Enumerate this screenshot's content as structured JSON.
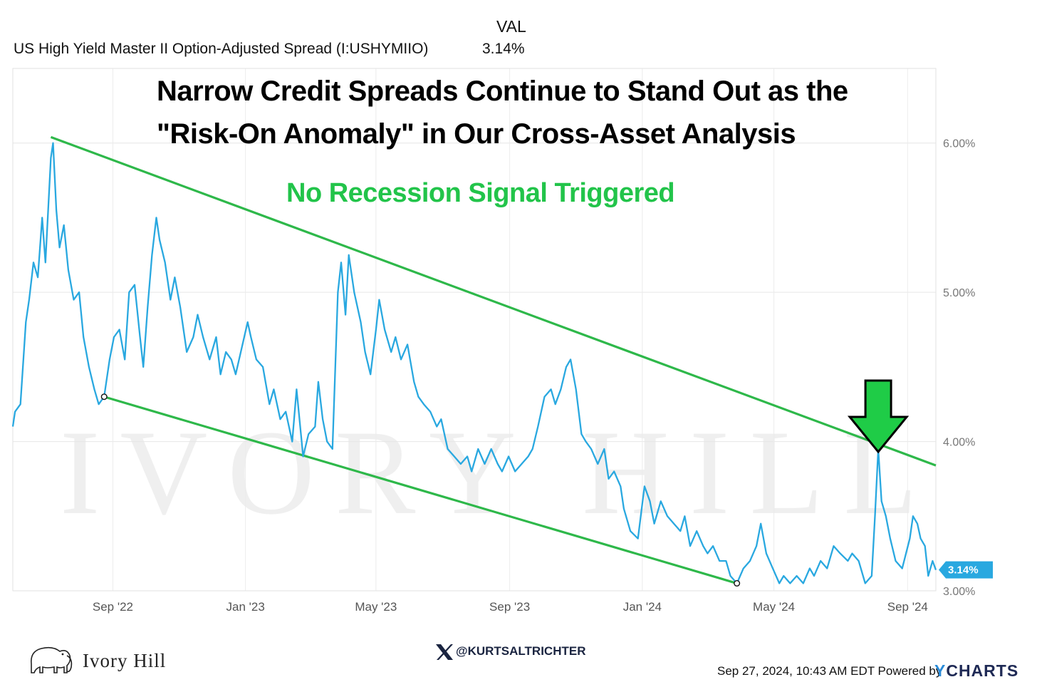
{
  "header": {
    "val_label": "VAL",
    "series_name": "US High Yield Master II Option-Adjusted Spread (I:USHYMIIO)",
    "series_value": "3.14%"
  },
  "annotations": {
    "title_line1": "Narrow Credit Spreads Continue to Stand Out as the",
    "title_line2": "\"Risk-On Anomaly\" in Our Cross-Asset Analysis",
    "subtitle": "No Recession Signal Triggered",
    "current_badge": "3.14%"
  },
  "watermark": {
    "text": "IVORY HILL"
  },
  "footer": {
    "brand": "Ivory Hill",
    "handle": "@KURTSALTRICHTER",
    "timestamp": "Sep 27, 2024, 10:43 AM EDT Powered by",
    "ycharts_y": "Y",
    "ycharts_rest": "CHARTS"
  },
  "colors": {
    "series": "#29a8e0",
    "trendlines": "#2eb84a",
    "subtitle": "#22c44a",
    "arrow_fill": "#1fcc47",
    "badge": "#29a8e0"
  },
  "icons": [
    "elephant-icon",
    "x-logo-icon",
    "down-arrow-icon"
  ],
  "chart_data": {
    "type": "line",
    "x_range": [
      "2022-06-01",
      "2024-09-27"
    ],
    "ylim": [
      3.0,
      6.5
    ],
    "yticks": [
      {
        "value": 6.0,
        "label": "6.00%"
      },
      {
        "value": 5.0,
        "label": "5.00%"
      },
      {
        "value": 4.0,
        "label": "4.00%"
      },
      {
        "value": 3.0,
        "label": "3.00%"
      }
    ],
    "xticks": [
      {
        "date": "2022-09-01",
        "label": "Sep '22"
      },
      {
        "date": "2023-01-01",
        "label": "Jan '23"
      },
      {
        "date": "2023-05-01",
        "label": "May '23"
      },
      {
        "date": "2023-09-01",
        "label": "Sep '23"
      },
      {
        "date": "2024-01-01",
        "label": "Jan '24"
      },
      {
        "date": "2024-05-01",
        "label": "May '24"
      },
      {
        "date": "2024-09-01",
        "label": "Sep '24"
      }
    ],
    "grid": true,
    "series": [
      {
        "name": "US High Yield Master II Option-Adjusted Spread (I:USHYMIIO)",
        "points": [
          [
            "2022-06-01",
            4.1
          ],
          [
            "2022-06-03",
            4.2
          ],
          [
            "2022-06-08",
            4.25
          ],
          [
            "2022-06-13",
            4.8
          ],
          [
            "2022-06-16",
            4.95
          ],
          [
            "2022-06-20",
            5.2
          ],
          [
            "2022-06-24",
            5.1
          ],
          [
            "2022-06-28",
            5.5
          ],
          [
            "2022-07-01",
            5.2
          ],
          [
            "2022-07-06",
            5.9
          ],
          [
            "2022-07-08",
            6.0
          ],
          [
            "2022-07-11",
            5.55
          ],
          [
            "2022-07-14",
            5.3
          ],
          [
            "2022-07-18",
            5.45
          ],
          [
            "2022-07-22",
            5.15
          ],
          [
            "2022-07-27",
            4.95
          ],
          [
            "2022-08-01",
            5.0
          ],
          [
            "2022-08-05",
            4.7
          ],
          [
            "2022-08-10",
            4.5
          ],
          [
            "2022-08-15",
            4.35
          ],
          [
            "2022-08-19",
            4.25
          ],
          [
            "2022-08-24",
            4.3
          ],
          [
            "2022-08-29",
            4.55
          ],
          [
            "2022-09-02",
            4.7
          ],
          [
            "2022-09-07",
            4.75
          ],
          [
            "2022-09-12",
            4.55
          ],
          [
            "2022-09-16",
            5.0
          ],
          [
            "2022-09-21",
            5.05
          ],
          [
            "2022-09-26",
            4.7
          ],
          [
            "2022-09-29",
            4.5
          ],
          [
            "2022-10-03",
            4.9
          ],
          [
            "2022-10-07",
            5.25
          ],
          [
            "2022-10-11",
            5.5
          ],
          [
            "2022-10-14",
            5.35
          ],
          [
            "2022-10-19",
            5.2
          ],
          [
            "2022-10-24",
            4.95
          ],
          [
            "2022-10-28",
            5.1
          ],
          [
            "2022-11-02",
            4.9
          ],
          [
            "2022-11-08",
            4.6
          ],
          [
            "2022-11-14",
            4.7
          ],
          [
            "2022-11-18",
            4.85
          ],
          [
            "2022-11-23",
            4.7
          ],
          [
            "2022-11-29",
            4.55
          ],
          [
            "2022-12-05",
            4.7
          ],
          [
            "2022-12-09",
            4.45
          ],
          [
            "2022-12-14",
            4.6
          ],
          [
            "2022-12-19",
            4.55
          ],
          [
            "2022-12-23",
            4.45
          ],
          [
            "2023-01-03",
            4.8
          ],
          [
            "2023-01-06",
            4.7
          ],
          [
            "2023-01-11",
            4.55
          ],
          [
            "2023-01-17",
            4.5
          ],
          [
            "2023-01-23",
            4.25
          ],
          [
            "2023-01-27",
            4.35
          ],
          [
            "2023-02-02",
            4.15
          ],
          [
            "2023-02-07",
            4.2
          ],
          [
            "2023-02-13",
            4.0
          ],
          [
            "2023-02-17",
            4.35
          ],
          [
            "2023-02-23",
            3.9
          ],
          [
            "2023-02-28",
            4.05
          ],
          [
            "2023-03-06",
            4.1
          ],
          [
            "2023-03-09",
            4.4
          ],
          [
            "2023-03-13",
            4.15
          ],
          [
            "2023-03-17",
            4.0
          ],
          [
            "2023-03-22",
            3.95
          ],
          [
            "2023-03-27",
            5.0
          ],
          [
            "2023-03-30",
            5.2
          ],
          [
            "2023-04-03",
            4.85
          ],
          [
            "2023-04-06",
            5.25
          ],
          [
            "2023-04-11",
            5.0
          ],
          [
            "2023-04-17",
            4.8
          ],
          [
            "2023-04-21",
            4.6
          ],
          [
            "2023-04-26",
            4.45
          ],
          [
            "2023-05-01",
            4.75
          ],
          [
            "2023-05-04",
            4.95
          ],
          [
            "2023-05-09",
            4.75
          ],
          [
            "2023-05-15",
            4.6
          ],
          [
            "2023-05-19",
            4.7
          ],
          [
            "2023-05-24",
            4.55
          ],
          [
            "2023-05-30",
            4.65
          ],
          [
            "2023-06-05",
            4.4
          ],
          [
            "2023-06-09",
            4.3
          ],
          [
            "2023-06-14",
            4.25
          ],
          [
            "2023-06-20",
            4.2
          ],
          [
            "2023-06-26",
            4.1
          ],
          [
            "2023-06-30",
            4.15
          ],
          [
            "2023-07-06",
            3.95
          ],
          [
            "2023-07-12",
            3.9
          ],
          [
            "2023-07-18",
            3.85
          ],
          [
            "2023-07-24",
            3.9
          ],
          [
            "2023-07-28",
            3.8
          ],
          [
            "2023-08-03",
            3.95
          ],
          [
            "2023-08-09",
            3.85
          ],
          [
            "2023-08-15",
            3.95
          ],
          [
            "2023-08-21",
            3.85
          ],
          [
            "2023-08-25",
            3.8
          ],
          [
            "2023-08-31",
            3.9
          ],
          [
            "2023-09-06",
            3.8
          ],
          [
            "2023-09-12",
            3.85
          ],
          [
            "2023-09-18",
            3.9
          ],
          [
            "2023-09-22",
            3.95
          ],
          [
            "2023-09-27",
            4.1
          ],
          [
            "2023-10-03",
            4.3
          ],
          [
            "2023-10-09",
            4.35
          ],
          [
            "2023-10-13",
            4.25
          ],
          [
            "2023-10-18",
            4.35
          ],
          [
            "2023-10-23",
            4.5
          ],
          [
            "2023-10-27",
            4.55
          ],
          [
            "2023-11-01",
            4.35
          ],
          [
            "2023-11-06",
            4.05
          ],
          [
            "2023-11-10",
            4.0
          ],
          [
            "2023-11-15",
            3.95
          ],
          [
            "2023-11-21",
            3.85
          ],
          [
            "2023-11-27",
            3.95
          ],
          [
            "2023-12-01",
            3.75
          ],
          [
            "2023-12-06",
            3.8
          ],
          [
            "2023-12-12",
            3.7
          ],
          [
            "2023-12-15",
            3.55
          ],
          [
            "2023-12-21",
            3.4
          ],
          [
            "2023-12-28",
            3.35
          ],
          [
            "2024-01-03",
            3.7
          ],
          [
            "2024-01-08",
            3.6
          ],
          [
            "2024-01-12",
            3.45
          ],
          [
            "2024-01-18",
            3.6
          ],
          [
            "2024-01-24",
            3.5
          ],
          [
            "2024-01-30",
            3.45
          ],
          [
            "2024-02-05",
            3.4
          ],
          [
            "2024-02-09",
            3.5
          ],
          [
            "2024-02-14",
            3.3
          ],
          [
            "2024-02-20",
            3.4
          ],
          [
            "2024-02-26",
            3.3
          ],
          [
            "2024-03-01",
            3.25
          ],
          [
            "2024-03-06",
            3.3
          ],
          [
            "2024-03-12",
            3.2
          ],
          [
            "2024-03-18",
            3.2
          ],
          [
            "2024-03-22",
            3.1
          ],
          [
            "2024-03-28",
            3.05
          ],
          [
            "2024-04-03",
            3.15
          ],
          [
            "2024-04-09",
            3.2
          ],
          [
            "2024-04-15",
            3.3
          ],
          [
            "2024-04-19",
            3.45
          ],
          [
            "2024-04-24",
            3.25
          ],
          [
            "2024-04-30",
            3.15
          ],
          [
            "2024-05-06",
            3.05
          ],
          [
            "2024-05-10",
            3.1
          ],
          [
            "2024-05-16",
            3.05
          ],
          [
            "2024-05-22",
            3.1
          ],
          [
            "2024-05-28",
            3.05
          ],
          [
            "2024-06-03",
            3.15
          ],
          [
            "2024-06-07",
            3.1
          ],
          [
            "2024-06-13",
            3.2
          ],
          [
            "2024-06-19",
            3.15
          ],
          [
            "2024-06-25",
            3.3
          ],
          [
            "2024-07-01",
            3.25
          ],
          [
            "2024-07-08",
            3.2
          ],
          [
            "2024-07-12",
            3.25
          ],
          [
            "2024-07-18",
            3.2
          ],
          [
            "2024-07-24",
            3.05
          ],
          [
            "2024-07-30",
            3.1
          ],
          [
            "2024-08-02",
            3.5
          ],
          [
            "2024-08-05",
            3.95
          ],
          [
            "2024-08-08",
            3.6
          ],
          [
            "2024-08-12",
            3.5
          ],
          [
            "2024-08-16",
            3.35
          ],
          [
            "2024-08-21",
            3.2
          ],
          [
            "2024-08-27",
            3.15
          ],
          [
            "2024-09-03",
            3.35
          ],
          [
            "2024-09-06",
            3.5
          ],
          [
            "2024-09-10",
            3.45
          ],
          [
            "2024-09-13",
            3.35
          ],
          [
            "2024-09-17",
            3.3
          ],
          [
            "2024-09-20",
            3.1
          ],
          [
            "2024-09-24",
            3.2
          ],
          [
            "2024-09-27",
            3.14
          ]
        ]
      }
    ],
    "trendlines": [
      {
        "from": [
          "2022-07-06",
          6.04
        ],
        "to": [
          "2024-09-27",
          3.84
        ]
      },
      {
        "from": [
          "2022-08-24",
          4.3
        ],
        "to": [
          "2024-03-28",
          3.05
        ]
      }
    ],
    "markers": [
      [
        "2022-08-24",
        4.3
      ],
      [
        "2024-03-28",
        3.05
      ]
    ],
    "arrow_at": "2024-08-05"
  }
}
